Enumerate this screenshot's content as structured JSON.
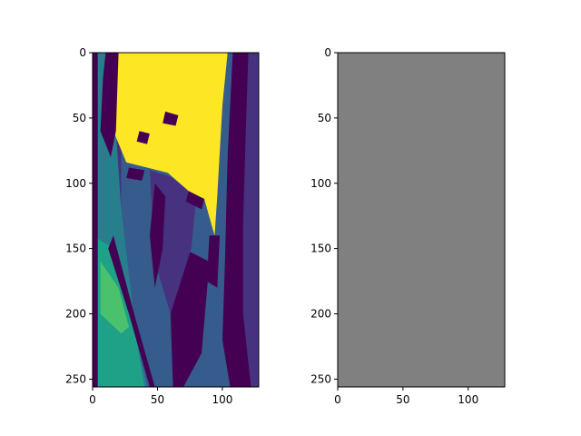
{
  "figure": {
    "background": "#ffffff"
  },
  "chart_data": [
    {
      "type": "heatmap",
      "title": "",
      "xlabel": "",
      "ylabel": "",
      "xlim": [
        0,
        128
      ],
      "ylim": [
        256,
        0
      ],
      "x_ticks": [
        0,
        50,
        100
      ],
      "y_ticks": [
        0,
        50,
        100,
        150,
        200,
        250
      ],
      "colormap": "viridis",
      "colorbar": false,
      "grid": false,
      "levels": [
        0,
        1,
        2,
        3,
        4,
        5,
        6,
        7
      ],
      "level_colors": [
        "#440154",
        "#46327e",
        "#365c8d",
        "#277f8e",
        "#1fa187",
        "#4ac16d",
        "#a0da39",
        "#fde725"
      ],
      "region_shapes": [
        {
          "level": 2,
          "points": [
            [
              0,
              0
            ],
            [
              128,
              0
            ],
            [
              128,
              256
            ],
            [
              0,
              256
            ]
          ]
        },
        {
          "level": 0,
          "points": [
            [
              108,
              0
            ],
            [
              128,
              0
            ],
            [
              128,
              256
            ],
            [
              106,
              256
            ],
            [
              100,
              220
            ],
            [
              102,
              160
            ],
            [
              104,
              80
            ]
          ]
        },
        {
          "level": 1,
          "points": [
            [
              120,
              0
            ],
            [
              128,
              0
            ],
            [
              128,
              256
            ],
            [
              122,
              256
            ],
            [
              116,
              200
            ],
            [
              116,
              130
            ],
            [
              118,
              60
            ]
          ]
        },
        {
          "level": 1,
          "points": [
            [
              0,
              0
            ],
            [
              22,
              0
            ],
            [
              22,
              160
            ],
            [
              30,
              230
            ],
            [
              36,
              256
            ],
            [
              0,
              256
            ]
          ]
        },
        {
          "level": 3,
          "points": [
            [
              0,
              0
            ],
            [
              20,
              0
            ],
            [
              18,
              60
            ],
            [
              22,
              120
            ],
            [
              34,
              220
            ],
            [
              42,
              256
            ],
            [
              0,
              256
            ]
          ]
        },
        {
          "level": 4,
          "points": [
            [
              0,
              140
            ],
            [
              16,
              150
            ],
            [
              32,
              210
            ],
            [
              40,
              256
            ],
            [
              0,
              256
            ]
          ]
        },
        {
          "level": 5,
          "points": [
            [
              6,
              160
            ],
            [
              20,
              180
            ],
            [
              28,
              210
            ],
            [
              22,
              215
            ],
            [
              6,
              200
            ]
          ]
        },
        {
          "level": 0,
          "points": [
            [
              0,
              0
            ],
            [
              4,
              0
            ],
            [
              4,
              256
            ],
            [
              0,
              256
            ]
          ]
        },
        {
          "level": 0,
          "points": [
            [
              16,
              140
            ],
            [
              32,
              200
            ],
            [
              48,
              256
            ],
            [
              44,
              256
            ],
            [
              28,
              200
            ],
            [
              12,
              150
            ]
          ]
        },
        {
          "level": 0,
          "points": [
            [
              56,
              170
            ],
            [
              70,
              150
            ],
            [
              90,
              160
            ],
            [
              84,
              230
            ],
            [
              70,
              256
            ],
            [
              62,
              256
            ],
            [
              60,
              200
            ]
          ]
        },
        {
          "level": 1,
          "points": [
            [
              44,
              90
            ],
            [
              60,
              95
            ],
            [
              80,
              110
            ],
            [
              76,
              150
            ],
            [
              60,
              200
            ],
            [
              48,
              160
            ]
          ]
        },
        {
          "level": 0,
          "points": [
            [
              48,
              100
            ],
            [
              56,
              110
            ],
            [
              54,
              150
            ],
            [
              48,
              180
            ],
            [
              44,
              140
            ]
          ]
        },
        {
          "level": 7,
          "points": [
            [
              18,
              0
            ],
            [
              104,
              0
            ],
            [
              100,
              40
            ],
            [
              96,
              110
            ],
            [
              94,
              140
            ],
            [
              86,
              112
            ],
            [
              74,
              106
            ],
            [
              58,
              92
            ],
            [
              42,
              88
            ],
            [
              26,
              84
            ],
            [
              16,
              60
            ]
          ]
        },
        {
          "level": 0,
          "points": [
            [
              10,
              0
            ],
            [
              20,
              0
            ],
            [
              18,
              60
            ],
            [
              14,
              80
            ],
            [
              6,
              60
            ],
            [
              8,
              20
            ]
          ]
        },
        {
          "level": 0,
          "points": [
            [
              90,
              140
            ],
            [
              98,
              140
            ],
            [
              96,
              180
            ],
            [
              88,
              175
            ]
          ]
        },
        {
          "level": 0,
          "points": [
            [
              28,
              88
            ],
            [
              40,
              90
            ],
            [
              38,
              98
            ],
            [
              26,
              96
            ]
          ]
        },
        {
          "level": 0,
          "points": [
            [
              74,
              106
            ],
            [
              86,
              112
            ],
            [
              84,
              120
            ],
            [
              72,
              114
            ]
          ]
        },
        {
          "level": 0,
          "points": [
            [
              56,
              45
            ],
            [
              66,
              48
            ],
            [
              64,
              56
            ],
            [
              54,
              54
            ]
          ]
        },
        {
          "level": 0,
          "points": [
            [
              36,
              60
            ],
            [
              44,
              62
            ],
            [
              42,
              70
            ],
            [
              34,
              68
            ]
          ]
        }
      ]
    },
    {
      "type": "heatmap",
      "title": "",
      "xlabel": "",
      "ylabel": "",
      "xlim": [
        0,
        128
      ],
      "ylim": [
        256,
        0
      ],
      "x_ticks": [
        0,
        50,
        100
      ],
      "y_ticks": [
        0,
        50,
        100,
        150,
        200,
        250
      ],
      "colorbar": false,
      "grid": false,
      "fill_color": "#808080"
    }
  ]
}
